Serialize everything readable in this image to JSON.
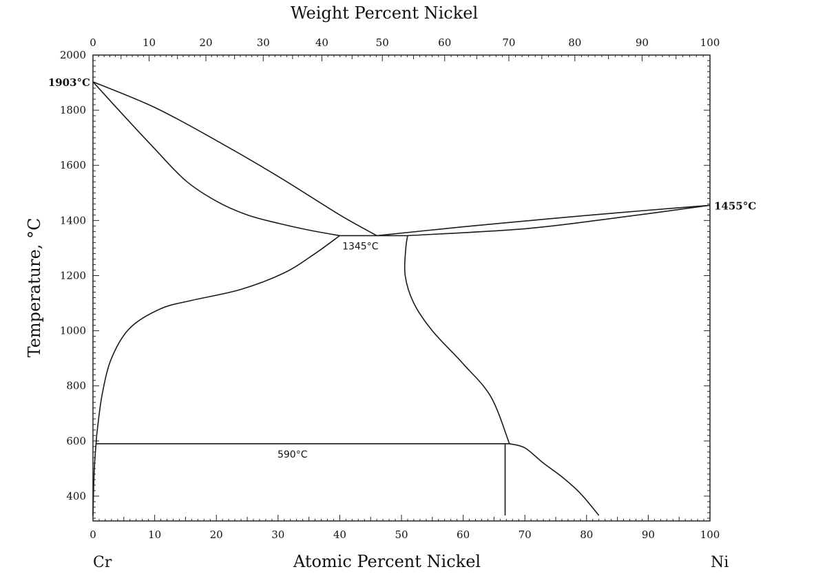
{
  "chart_data": {
    "type": "line",
    "top_axis_title": "Weight Percent Nickel",
    "bottom_axis_title": "Atomic Percent Nickel",
    "y_axis_title": "Temperature, °C",
    "left_element": "Cr",
    "right_element": "Ni",
    "xlim": [
      0,
      100
    ],
    "ylim": [
      310,
      2000
    ],
    "x_ticks": [
      "0",
      "10",
      "20",
      "30",
      "40",
      "50",
      "60",
      "70",
      "80",
      "90",
      "100"
    ],
    "y_ticks": [
      "400",
      "600",
      "800",
      "1000",
      "1200",
      "1400",
      "1600",
      "1800",
      "2000"
    ],
    "top_ticks": [
      {
        "label": "0",
        "at": 0
      },
      {
        "label": "10",
        "at": 9.1
      },
      {
        "label": "20",
        "at": 18.3
      },
      {
        "label": "30",
        "at": 27.6
      },
      {
        "label": "40",
        "at": 37.1
      },
      {
        "label": "50",
        "at": 46.9
      },
      {
        "label": "60",
        "at": 57
      },
      {
        "label": "70",
        "at": 67.4
      },
      {
        "label": "80",
        "at": 78.1
      },
      {
        "label": "90",
        "at": 89
      },
      {
        "label": "100",
        "at": 100
      }
    ],
    "point_labels": [
      {
        "text": "1903°C",
        "x": 0,
        "y": 1903,
        "side": "left"
      },
      {
        "text": "1455°C",
        "x": 100,
        "y": 1455,
        "side": "right"
      }
    ],
    "invariant_labels": [
      {
        "text": "1345°C",
        "x": 43,
        "y": 1345
      },
      {
        "text": "590°C",
        "x": 32,
        "y": 590
      }
    ],
    "series": [
      {
        "values": [
          [
            0,
            1903
          ],
          [
            10,
            1810
          ],
          [
            20,
            1690
          ],
          [
            30,
            1560
          ],
          [
            40,
            1420
          ],
          [
            46,
            1345
          ]
        ]
      },
      {
        "values": [
          [
            0,
            1903
          ],
          [
            5,
            1780
          ],
          [
            10,
            1660
          ],
          [
            15,
            1545
          ],
          [
            20,
            1470
          ],
          [
            25,
            1420
          ],
          [
            30,
            1390
          ],
          [
            35,
            1365
          ],
          [
            40,
            1345
          ]
        ]
      },
      {
        "values": [
          [
            46,
            1345
          ],
          [
            60,
            1377
          ],
          [
            70,
            1398
          ],
          [
            80,
            1418
          ],
          [
            90,
            1437
          ],
          [
            100,
            1455
          ]
        ]
      },
      {
        "values": [
          [
            51,
            1345
          ],
          [
            70,
            1370
          ],
          [
            85,
            1410
          ],
          [
            100,
            1455
          ]
        ]
      },
      {
        "values": [
          [
            40,
            1345
          ],
          [
            36,
            1280
          ],
          [
            31,
            1210
          ],
          [
            24,
            1150
          ],
          [
            16,
            1110
          ],
          [
            11,
            1080
          ],
          [
            6,
            1010
          ],
          [
            3,
            900
          ],
          [
            1.5,
            770
          ],
          [
            0.7,
            640
          ],
          [
            0.5,
            590
          ],
          [
            0.2,
            490
          ],
          [
            0,
            330
          ]
        ]
      },
      {
        "values": [
          [
            51,
            1345
          ],
          [
            50.7,
            1300
          ],
          [
            50.6,
            1200
          ],
          [
            52,
            1100
          ],
          [
            55,
            1000
          ],
          [
            60,
            880
          ],
          [
            64.5,
            760
          ],
          [
            67.5,
            590
          ]
        ]
      },
      {
        "values": [
          [
            67.5,
            590
          ],
          [
            70,
            575
          ],
          [
            73,
            520
          ],
          [
            76,
            470
          ],
          [
            79,
            410
          ],
          [
            82,
            330
          ]
        ]
      },
      {
        "values": [
          [
            40,
            1345
          ],
          [
            51,
            1345
          ]
        ]
      },
      {
        "values": [
          [
            0.5,
            590
          ],
          [
            67.5,
            590
          ]
        ]
      },
      {
        "values": [
          [
            66.8,
            590
          ],
          [
            66.8,
            330
          ]
        ]
      }
    ]
  }
}
